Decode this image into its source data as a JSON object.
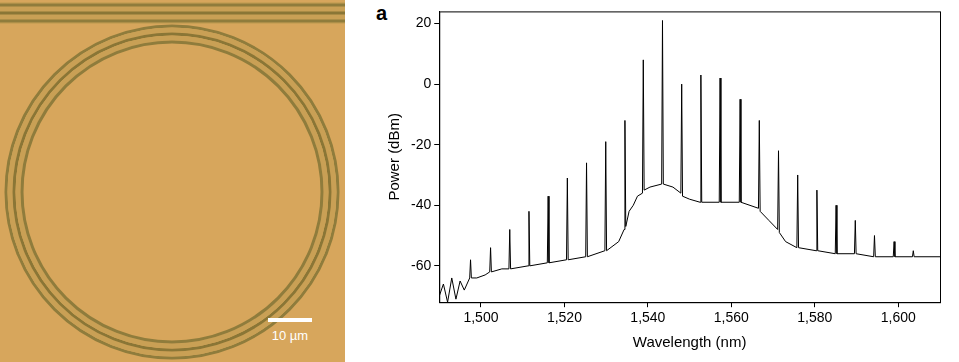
{
  "micrograph": {
    "scale_bar_label": "10 µm"
  },
  "chart_data": {
    "type": "line",
    "panel_label": "a",
    "x_label": "Wavelength (nm)",
    "y_label": "Power (dBm)",
    "color": "#000000",
    "grid": false,
    "xlim": [
      1490,
      1610
    ],
    "xticks": [
      {
        "value": 1500,
        "label": "1,500"
      },
      {
        "value": 1520,
        "label": "1,520"
      },
      {
        "value": 1540,
        "label": "1,540"
      },
      {
        "value": 1560,
        "label": "1,560"
      },
      {
        "value": 1580,
        "label": "1,580"
      },
      {
        "value": 1600,
        "label": "1,600"
      }
    ],
    "ylim": [
      -72,
      24
    ],
    "yticks": [
      -60,
      -40,
      -20,
      0,
      20
    ],
    "x": [
      1490,
      1491,
      1492,
      1493,
      1494,
      1495,
      1496,
      1497.3,
      1497.5,
      1497.7,
      1499,
      1501,
      1502.1,
      1502.3,
      1502.5,
      1505,
      1506.7,
      1506.9,
      1507.1,
      1511.3,
      1511.5,
      1511.7,
      1515.9,
      1516.1,
      1516.3,
      1520.5,
      1520.7,
      1520.9,
      1525.1,
      1525.3,
      1525.5,
      1529.7,
      1529.9,
      1530.1,
      1533,
      1534.3,
      1534.5,
      1534.7,
      1535.5,
      1536.5,
      1537.5,
      1538.7,
      1538.9,
      1539.1,
      1540.5,
      1543.3,
      1543.5,
      1543.7,
      1546,
      1547.9,
      1548.1,
      1548.3,
      1550,
      1552.5,
      1552.7,
      1552.9,
      1557.1,
      1557.3,
      1557.5,
      1561.9,
      1562.1,
      1562.3,
      1566.5,
      1566.7,
      1566.9,
      1569,
      1571.1,
      1571.3,
      1571.5,
      1573,
      1575.7,
      1575.9,
      1576.1,
      1580.3,
      1580.5,
      1580.7,
      1584.9,
      1585.1,
      1585.3,
      1589.5,
      1589.7,
      1589.9,
      1594.1,
      1594.3,
      1594.5,
      1598.8,
      1599,
      1599.2,
      1603.4,
      1603.6,
      1603.8,
      1610
    ],
    "values": [
      -70,
      -66,
      -72,
      -64,
      -71,
      -65,
      -68,
      -64,
      -58,
      -64,
      -64,
      -63,
      -62,
      -54,
      -62,
      -61,
      -61,
      -48,
      -61,
      -60,
      -42,
      -60,
      -59,
      -37,
      -59,
      -58,
      -31,
      -58,
      -57,
      -26,
      -57,
      -55,
      -19,
      -55,
      -52,
      -48,
      -12,
      -47,
      -42,
      -40,
      -37,
      -36,
      8,
      -35,
      -34,
      -33,
      21,
      -33,
      -34,
      -36,
      0,
      -37,
      -38,
      -39,
      3,
      -39,
      -39,
      2,
      -39,
      -39,
      -5,
      -39,
      -41,
      -12,
      -42,
      -45,
      -48,
      -22,
      -49,
      -52,
      -54,
      -30,
      -54,
      -55,
      -35,
      -55,
      -56,
      -40,
      -56,
      -56,
      -45,
      -56,
      -57,
      -50,
      -57,
      -57,
      -52,
      -57,
      -57,
      -55,
      -57,
      -57
    ]
  }
}
